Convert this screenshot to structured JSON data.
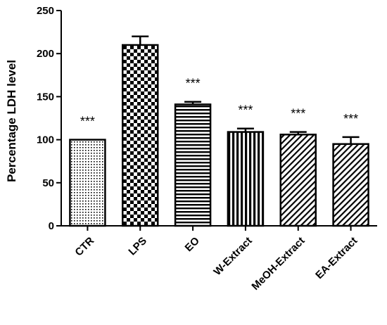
{
  "chart_data": {
    "type": "bar",
    "ylabel": "Percentage LDH level",
    "xlabel": "",
    "title": "",
    "ylim": [
      0,
      250
    ],
    "yticks": [
      "0",
      "50",
      "100",
      "150",
      "200",
      "250"
    ],
    "categories": [
      "CTR",
      "LPS",
      "EO",
      "W-Extract",
      "MeOH-Extract",
      "EA-Extract"
    ],
    "values": [
      100,
      210,
      141,
      109,
      106,
      95
    ],
    "errors": [
      0,
      10,
      3,
      4,
      3,
      8
    ],
    "significance": [
      "***",
      "",
      "***",
      "***",
      "***",
      "***"
    ],
    "fill_patterns": [
      "dots",
      "checker",
      "horizontal-lines",
      "vertical-lines",
      "diagonal-lines",
      "diagonal-lines"
    ],
    "colors": {
      "bar_stroke": "#000000",
      "pattern": "#000000",
      "background": "#ffffff"
    }
  }
}
